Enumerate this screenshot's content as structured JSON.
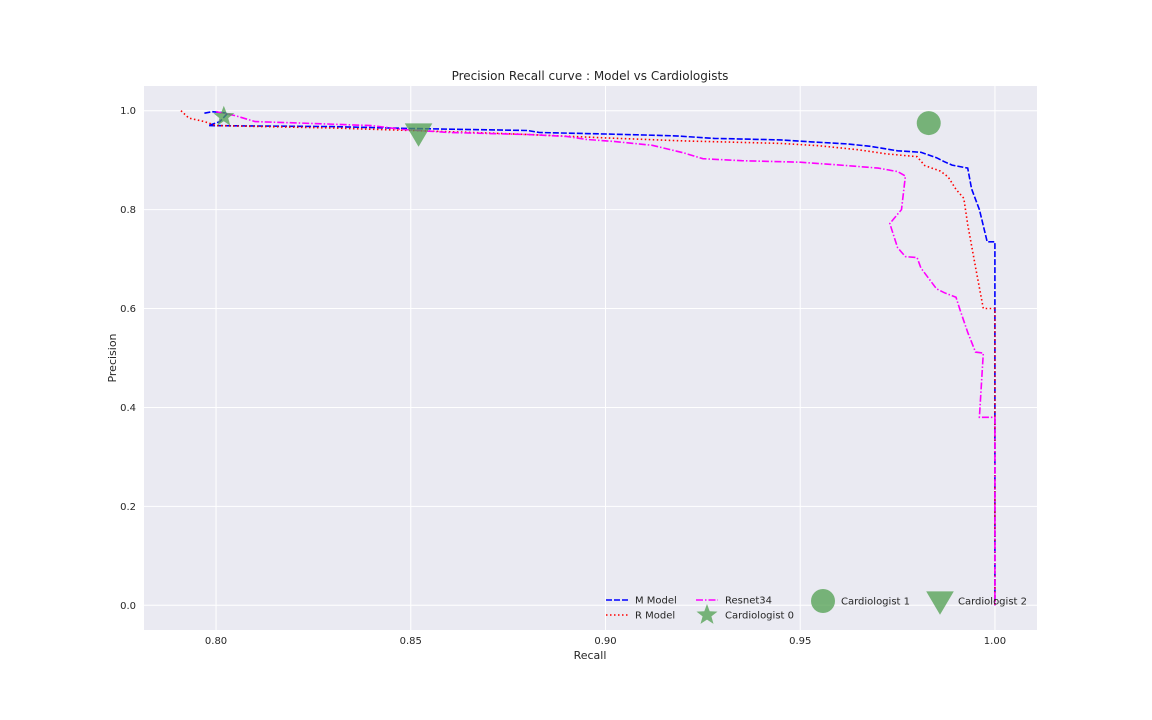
{
  "chart_data": {
    "type": "line",
    "title": "Precision Recall curve : Model vs Cardiologists",
    "xlabel": "Recall",
    "ylabel": "Precision",
    "xlim": [
      0.7815,
      1.0108
    ],
    "ylim": [
      -0.05,
      1.05
    ],
    "xticks": [
      "0.80",
      "0.85",
      "0.90",
      "0.95",
      "1.00"
    ],
    "yticks": [
      "0.0",
      "0.2",
      "0.4",
      "0.6",
      "0.8",
      "1.0"
    ],
    "grid": true,
    "legend_position": "bottom-right",
    "colors": {
      "background": "#EAEAF2",
      "m_model": "#0000FF",
      "r_model": "#FF0000",
      "resnet34": "#FF00FF",
      "cardiologist": "#4F9F4F"
    },
    "series": [
      {
        "name": "M Model",
        "style": "dashed",
        "points": [
          [
            0.797,
            0.995
          ],
          [
            0.799,
            0.998
          ],
          [
            0.803,
            0.995
          ],
          [
            0.801,
            0.978
          ],
          [
            0.798,
            0.97
          ],
          [
            0.83,
            0.968
          ],
          [
            0.85,
            0.964
          ],
          [
            0.88,
            0.96
          ],
          [
            0.883,
            0.956
          ],
          [
            0.9,
            0.953
          ],
          [
            0.91,
            0.951
          ],
          [
            0.918,
            0.949
          ],
          [
            0.928,
            0.944
          ],
          [
            0.945,
            0.941
          ],
          [
            0.953,
            0.937
          ],
          [
            0.962,
            0.933
          ],
          [
            0.968,
            0.928
          ],
          [
            0.975,
            0.919
          ],
          [
            0.981,
            0.916
          ],
          [
            0.985,
            0.905
          ],
          [
            0.987,
            0.897
          ],
          [
            0.989,
            0.89
          ],
          [
            0.993,
            0.884
          ],
          [
            0.994,
            0.842
          ],
          [
            0.996,
            0.8
          ],
          [
            0.998,
            0.735
          ],
          [
            1.0,
            0.735
          ],
          [
            1.0,
            0.0
          ]
        ]
      },
      {
        "name": "R Model",
        "style": "dotted",
        "points": [
          [
            0.791,
            1.0
          ],
          [
            0.793,
            0.985
          ],
          [
            0.797,
            0.978
          ],
          [
            0.8,
            0.97
          ],
          [
            0.83,
            0.965
          ],
          [
            0.85,
            0.96
          ],
          [
            0.87,
            0.955
          ],
          [
            0.88,
            0.952
          ],
          [
            0.9,
            0.945
          ],
          [
            0.92,
            0.939
          ],
          [
            0.945,
            0.934
          ],
          [
            0.955,
            0.929
          ],
          [
            0.965,
            0.921
          ],
          [
            0.972,
            0.913
          ],
          [
            0.98,
            0.907
          ],
          [
            0.982,
            0.889
          ],
          [
            0.986,
            0.878
          ],
          [
            0.988,
            0.866
          ],
          [
            0.99,
            0.841
          ],
          [
            0.992,
            0.823
          ],
          [
            0.993,
            0.77
          ],
          [
            0.995,
            0.684
          ],
          [
            0.997,
            0.6
          ],
          [
            1.0,
            0.6
          ],
          [
            1.0,
            0.0
          ]
        ]
      },
      {
        "name": "Resnet34",
        "style": "dashdot",
        "points": [
          [
            0.8,
            0.998
          ],
          [
            0.805,
            0.99
          ],
          [
            0.81,
            0.978
          ],
          [
            0.822,
            0.975
          ],
          [
            0.84,
            0.97
          ],
          [
            0.848,
            0.962
          ],
          [
            0.86,
            0.956
          ],
          [
            0.88,
            0.952
          ],
          [
            0.89,
            0.948
          ],
          [
            0.895,
            0.942
          ],
          [
            0.902,
            0.938
          ],
          [
            0.912,
            0.93
          ],
          [
            0.92,
            0.915
          ],
          [
            0.925,
            0.903
          ],
          [
            0.935,
            0.899
          ],
          [
            0.95,
            0.896
          ],
          [
            0.962,
            0.889
          ],
          [
            0.97,
            0.884
          ],
          [
            0.975,
            0.877
          ],
          [
            0.977,
            0.868
          ],
          [
            0.976,
            0.8
          ],
          [
            0.973,
            0.772
          ],
          [
            0.975,
            0.723
          ],
          [
            0.977,
            0.705
          ],
          [
            0.98,
            0.703
          ],
          [
            0.981,
            0.682
          ],
          [
            0.983,
            0.661
          ],
          [
            0.985,
            0.64
          ],
          [
            0.987,
            0.632
          ],
          [
            0.99,
            0.623
          ],
          [
            0.991,
            0.598
          ],
          [
            0.993,
            0.552
          ],
          [
            0.995,
            0.512
          ],
          [
            0.997,
            0.51
          ],
          [
            0.996,
            0.38
          ],
          [
            0.998,
            0.38
          ],
          [
            1.0,
            0.38
          ],
          [
            1.0,
            0.0
          ]
        ]
      }
    ],
    "cardiologists": [
      {
        "name": "Cardiologist 0",
        "marker": "star",
        "x": 0.802,
        "y": 0.988
      },
      {
        "name": "Cardiologist 1",
        "marker": "circle",
        "x": 0.983,
        "y": 0.975
      },
      {
        "name": "Cardiologist 2",
        "marker": "triangle-down",
        "x": 0.852,
        "y": 0.955
      }
    ]
  }
}
